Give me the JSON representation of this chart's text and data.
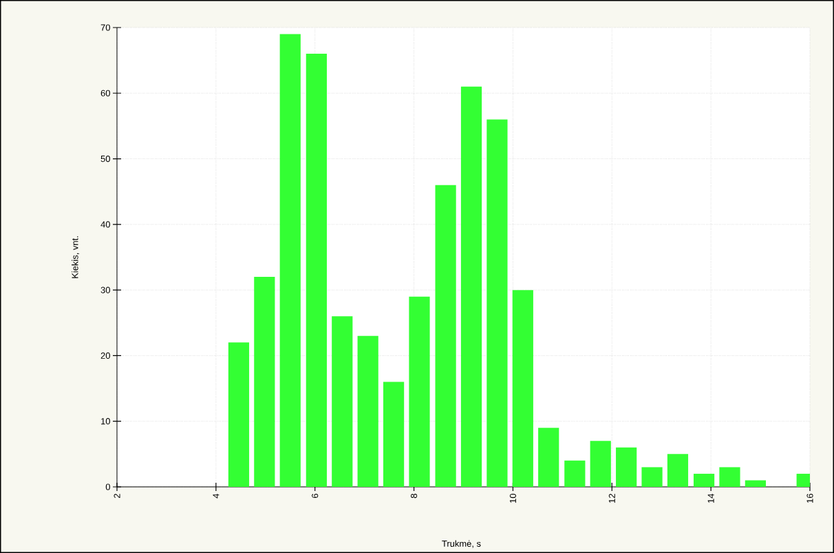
{
  "chart_data": {
    "type": "bar",
    "xlabel": "Trukmė, s",
    "ylabel": "Kiekis, vnt.",
    "x": [
      4.46,
      4.98,
      5.5,
      6.03,
      6.55,
      7.07,
      7.59,
      8.11,
      8.64,
      9.16,
      9.68,
      10.2,
      10.72,
      11.25,
      11.77,
      12.29,
      12.81,
      13.33,
      13.86,
      14.38,
      14.9,
      15.94
    ],
    "values": [
      22,
      32,
      69,
      66,
      26,
      23,
      16,
      29,
      46,
      61,
      56,
      30,
      9,
      4,
      7,
      6,
      3,
      5,
      2,
      3,
      1,
      2
    ],
    "color": "#33ff33",
    "xlim": [
      2,
      16
    ],
    "ylim": [
      0,
      70
    ],
    "xticks": [
      2,
      4,
      6,
      8,
      10,
      12,
      14,
      16
    ],
    "yticks": [
      0,
      10,
      20,
      30,
      40,
      50,
      60,
      70
    ],
    "grid": true
  }
}
